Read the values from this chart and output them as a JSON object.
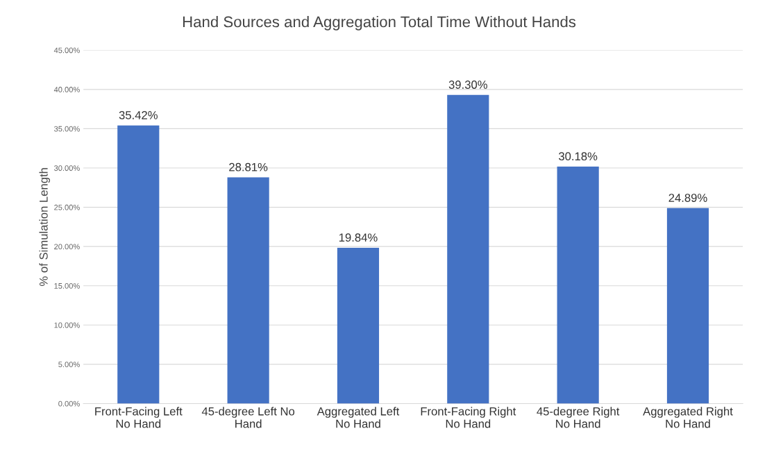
{
  "chart_data": {
    "type": "bar",
    "title": "Hand Sources and Aggregation Total Time Without Hands",
    "ylabel": "% of Simulation Length",
    "categories": [
      "Front-Facing Left\nNo Hand",
      "45-degree Left No\nHand",
      "Aggregated Left\nNo Hand",
      "Front-Facing Right\nNo Hand",
      "45-degree Right\nNo Hand",
      "Aggregated Right\nNo Hand"
    ],
    "values": [
      35.42,
      28.81,
      19.84,
      39.3,
      30.18,
      24.89
    ],
    "value_labels": [
      "35.42%",
      "28.81%",
      "19.84%",
      "39.30%",
      "30.18%",
      "24.89%"
    ],
    "color": "#4472c4",
    "ylim": [
      0,
      45
    ],
    "yticks": [
      {
        "value": 0,
        "label": "0.00%"
      },
      {
        "value": 5,
        "label": "5.00%"
      },
      {
        "value": 10,
        "label": "10.00%"
      },
      {
        "value": 15,
        "label": "15.00%"
      },
      {
        "value": 20,
        "label": "20.00%"
      },
      {
        "value": 25,
        "label": "25.00%"
      },
      {
        "value": 30,
        "label": "30.00%"
      },
      {
        "value": 35,
        "label": "35.00%"
      },
      {
        "value": 40,
        "label": "40.00%"
      },
      {
        "value": 45,
        "label": "45.00%"
      }
    ],
    "grid": "y"
  }
}
